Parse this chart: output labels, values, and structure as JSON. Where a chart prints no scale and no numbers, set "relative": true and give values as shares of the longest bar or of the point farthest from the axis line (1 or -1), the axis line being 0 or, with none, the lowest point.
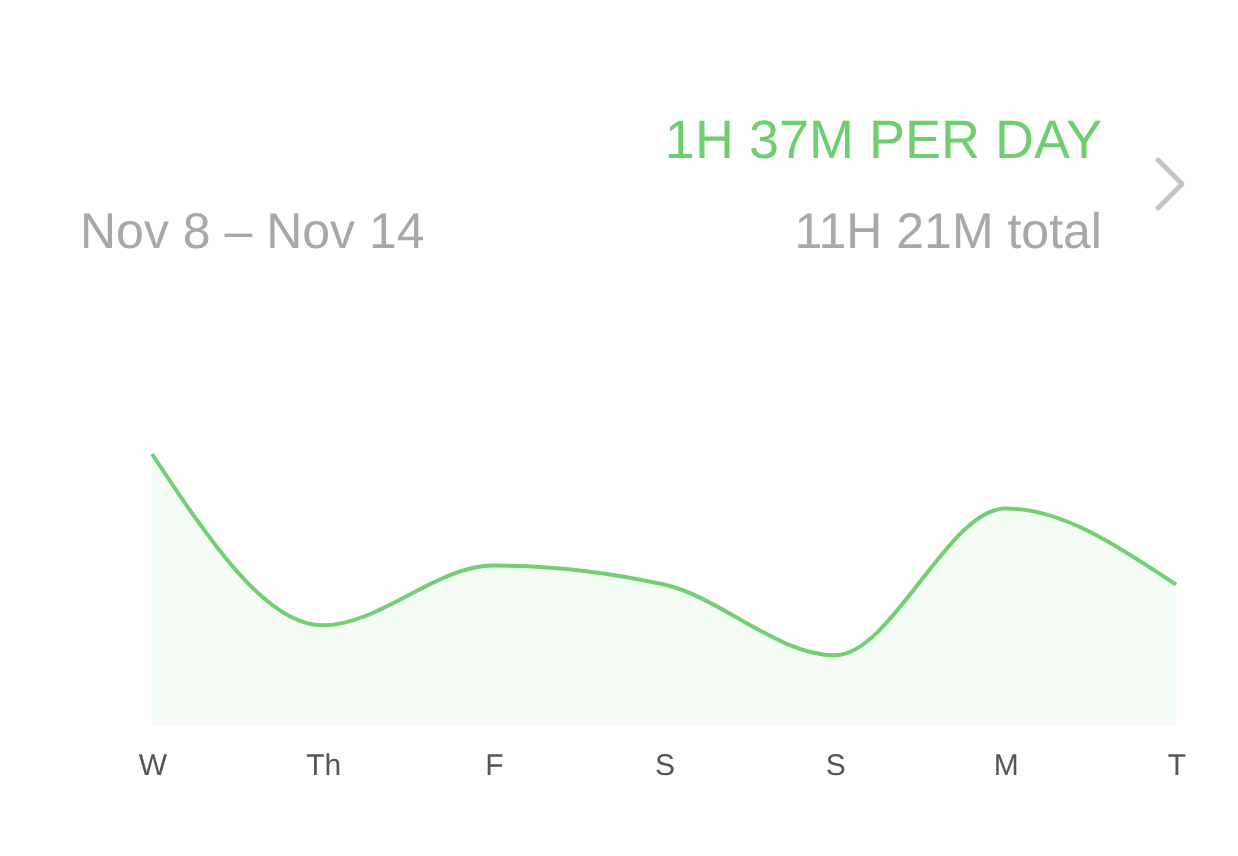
{
  "chart_data": {
    "type": "area",
    "relative": true,
    "subtitle": "Nov 8 – Nov 14",
    "annotations": [
      "1H 37M PER DAY",
      "11H 21M total"
    ],
    "categories": [
      "W",
      "Th",
      "F",
      "S",
      "S",
      "M",
      "T"
    ],
    "series": [
      {
        "color": "#72d072",
        "values": [
          1,
          0.37,
          0.59,
          0.52,
          0.26,
          0.8,
          0.52
        ]
      }
    ]
  }
}
